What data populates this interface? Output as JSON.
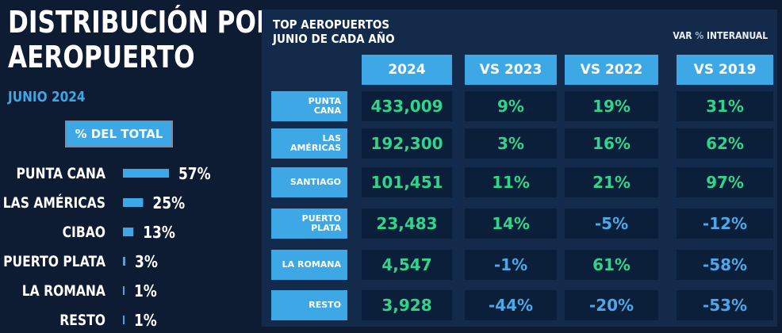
{
  "left": {
    "title_line1": "DISTRIBUCIÓN POR",
    "title_line2": "AEROPUERTO",
    "subtitle": "JUNIO 2024",
    "badge": "% DEL TOTAL"
  },
  "right": {
    "title_line1": "TOP AEROPUERTOS",
    "title_line2": "JUNIO DE CADA AÑO",
    "note_prefix": "VAR ",
    "note_pct": "%",
    "note_suffix": " INTERANUAL",
    "columns": [
      "2024",
      "VS 2023",
      "VS 2022",
      "VS 2019"
    ],
    "rows": [
      {
        "airport_l1": "PUNTA",
        "airport_l2": "CANA",
        "v2024": "433,009",
        "vs2023": "9%",
        "vs2022": "19%",
        "vs2019": "31%"
      },
      {
        "airport_l1": "LAS",
        "airport_l2": "AMÉRICAS",
        "v2024": "192,300",
        "vs2023": "3%",
        "vs2022": "16%",
        "vs2019": "62%"
      },
      {
        "airport_l1": "SANTIAGO",
        "airport_l2": "",
        "v2024": "101,451",
        "vs2023": "11%",
        "vs2022": "21%",
        "vs2019": "97%"
      },
      {
        "airport_l1": "PUERTO",
        "airport_l2": "PLATA",
        "v2024": "23,483",
        "vs2023": "14%",
        "vs2022": "-5%",
        "vs2019": "-12%"
      },
      {
        "airport_l1": "LA ROMANA",
        "airport_l2": "",
        "v2024": "4,547",
        "vs2023": "-1%",
        "vs2022": "61%",
        "vs2019": "-58%"
      },
      {
        "airport_l1": "RESTO",
        "airport_l2": "",
        "v2024": "3,928",
        "vs2023": "-44%",
        "vs2022": "-20%",
        "vs2019": "-53%"
      }
    ]
  },
  "colors": {
    "background": "#0d1b33",
    "panel": "#142a4a",
    "accent": "#3ea8e6",
    "positive": "#2fd58a",
    "negative": "#4ea8e8"
  },
  "chart_data": [
    {
      "type": "bar",
      "orientation": "horizontal",
      "title": "",
      "categories": [
        "PUNTA CANA",
        "LAS AMÉRICAS",
        "CIBAO",
        "PUERTO PLATA",
        "LA ROMANA",
        "RESTO"
      ],
      "values": [
        57,
        25,
        13,
        3,
        1,
        1
      ],
      "value_labels": [
        "57%",
        "25%",
        "13%",
        "3%",
        "1%",
        "1%"
      ],
      "xlabel": "",
      "ylabel": "",
      "xlim": [
        0,
        57
      ],
      "grid": false
    },
    {
      "type": "table",
      "columns": [
        "2024",
        "VS 2023",
        "VS 2022",
        "VS 2019"
      ],
      "rows": [
        "PUNTA CANA",
        "LAS AMÉRICAS",
        "SANTIAGO",
        "PUERTO PLATA",
        "LA ROMANA",
        "RESTO"
      ],
      "values": [
        [
          433009,
          9,
          19,
          31
        ],
        [
          192300,
          3,
          16,
          62
        ],
        [
          101451,
          11,
          21,
          97
        ],
        [
          23483,
          14,
          -5,
          -12
        ],
        [
          4547,
          -1,
          61,
          -58
        ],
        [
          3928,
          -44,
          -20,
          -53
        ]
      ]
    }
  ]
}
